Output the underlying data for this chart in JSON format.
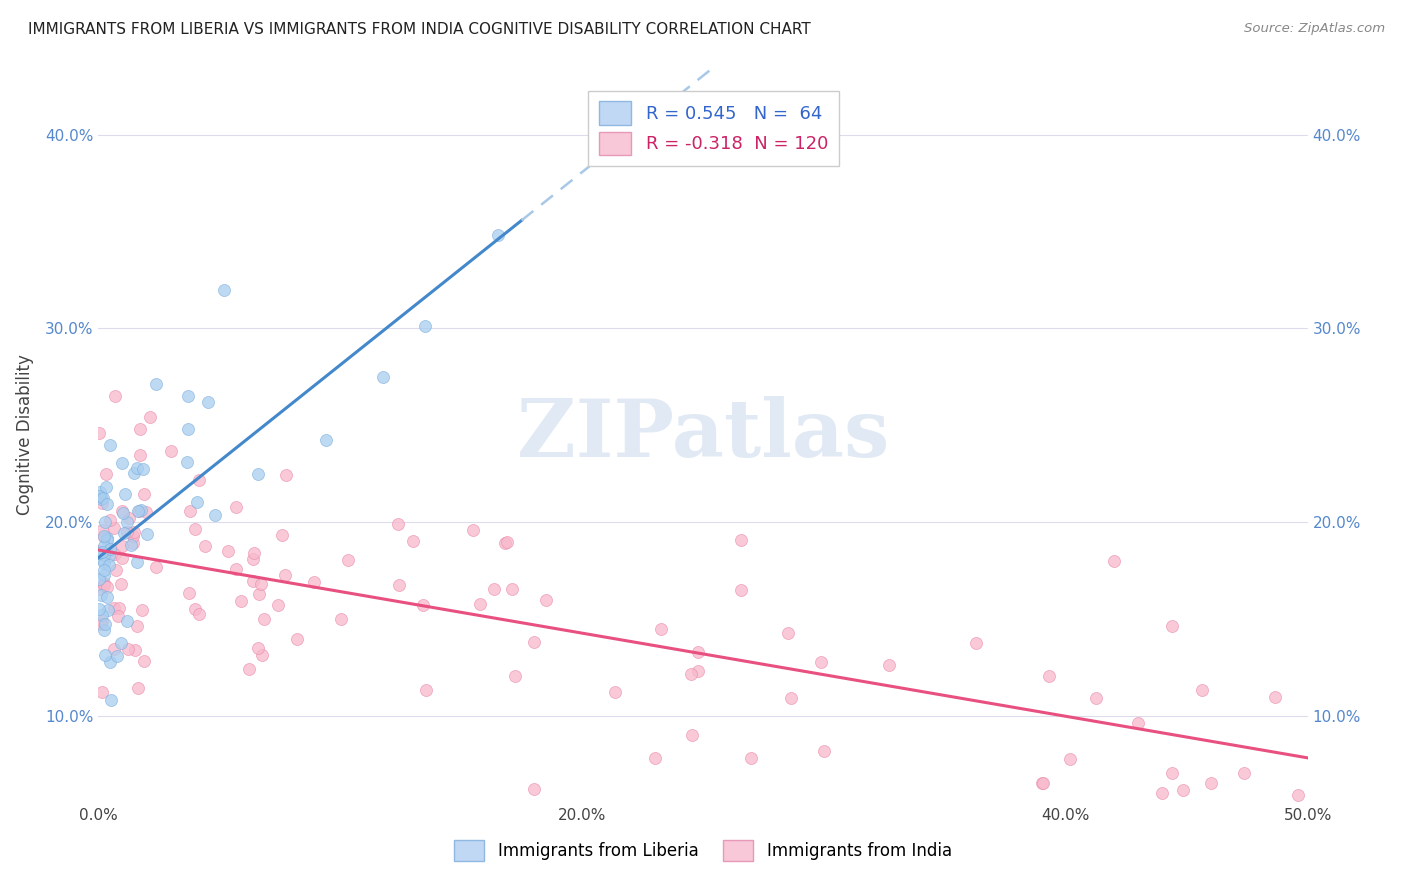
{
  "title": "IMMIGRANTS FROM LIBERIA VS IMMIGRANTS FROM INDIA COGNITIVE DISABILITY CORRELATION CHART",
  "source": "Source: ZipAtlas.com",
  "ylabel": "Cognitive Disability",
  "xlim": [
    0.0,
    0.5
  ],
  "ylim": [
    0.055,
    0.435
  ],
  "xticks": [
    0.0,
    0.1,
    0.2,
    0.3,
    0.4,
    0.5
  ],
  "yticks": [
    0.1,
    0.2,
    0.3,
    0.4
  ],
  "xticklabels": [
    "0.0%",
    "",
    "20.0%",
    "",
    "40.0%",
    "50.0%"
  ],
  "yticklabels": [
    "10.0%",
    "20.0%",
    "30.0%",
    "40.0%"
  ],
  "liberia_R": 0.545,
  "liberia_N": 64,
  "india_R": -0.318,
  "india_N": 120,
  "liberia_color": "#A8CEF0",
  "liberia_edge_color": "#7AACDC",
  "india_color": "#F8B8CC",
  "india_edge_color": "#E888A8",
  "liberia_line_color": "#4488CC",
  "india_line_color": "#E85080",
  "dashed_line_color": "#A8C8E8",
  "background_color": "#FFFFFF",
  "grid_color": "#DCDCEC",
  "watermark_color": "#C8D8EC",
  "watermark": "ZIPatlas",
  "legend_fill_liberia": "#C0D8F4",
  "legend_fill_india": "#F8C8D8",
  "legend_edge_liberia": "#90B8E0",
  "legend_edge_india": "#E898B8"
}
